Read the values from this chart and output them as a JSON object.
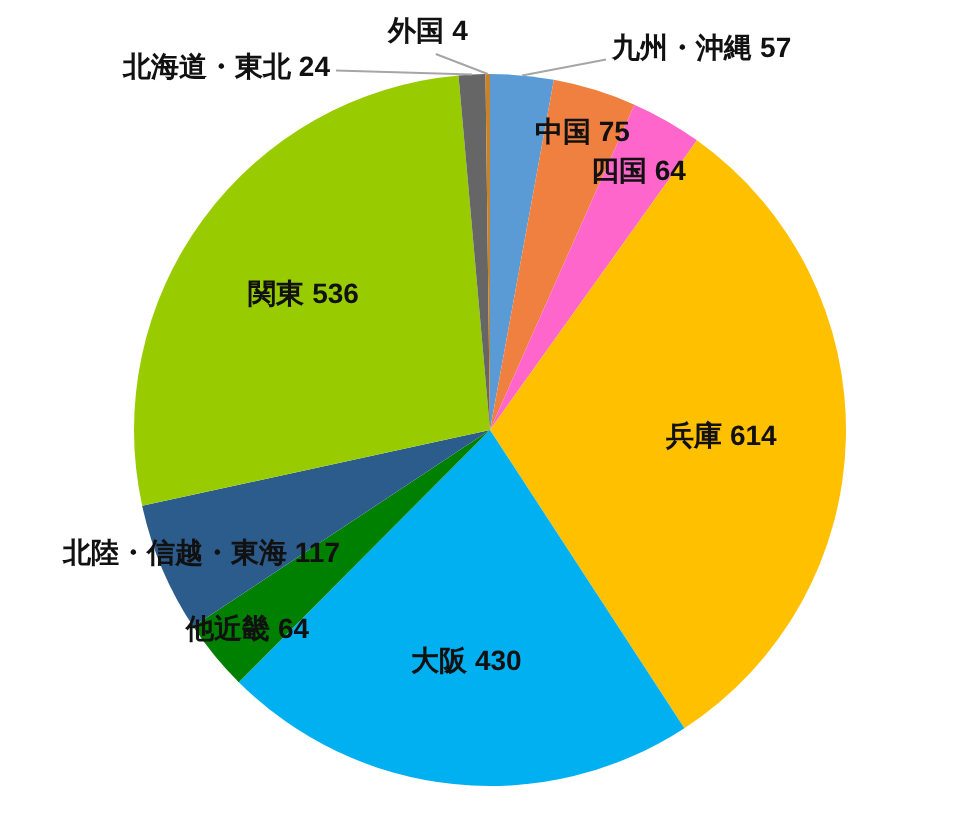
{
  "chart_data": {
    "type": "pie",
    "categories": [
      "九州・沖縄",
      "中国",
      "四国",
      "兵庫",
      "大阪",
      "他近畿",
      "北陸・信越・東海",
      "関東",
      "北海道・東北",
      "外国"
    ],
    "values": [
      57,
      75,
      64,
      614,
      430,
      64,
      117,
      536,
      24,
      4
    ],
    "colors": [
      "#5b9bd5",
      "#ef8040",
      "#ff66cc",
      "#ffc000",
      "#00b0f0",
      "#008000",
      "#2b5c8c",
      "#99cc00",
      "#666666",
      "#c8822c"
    ],
    "data_labels": true
  }
}
